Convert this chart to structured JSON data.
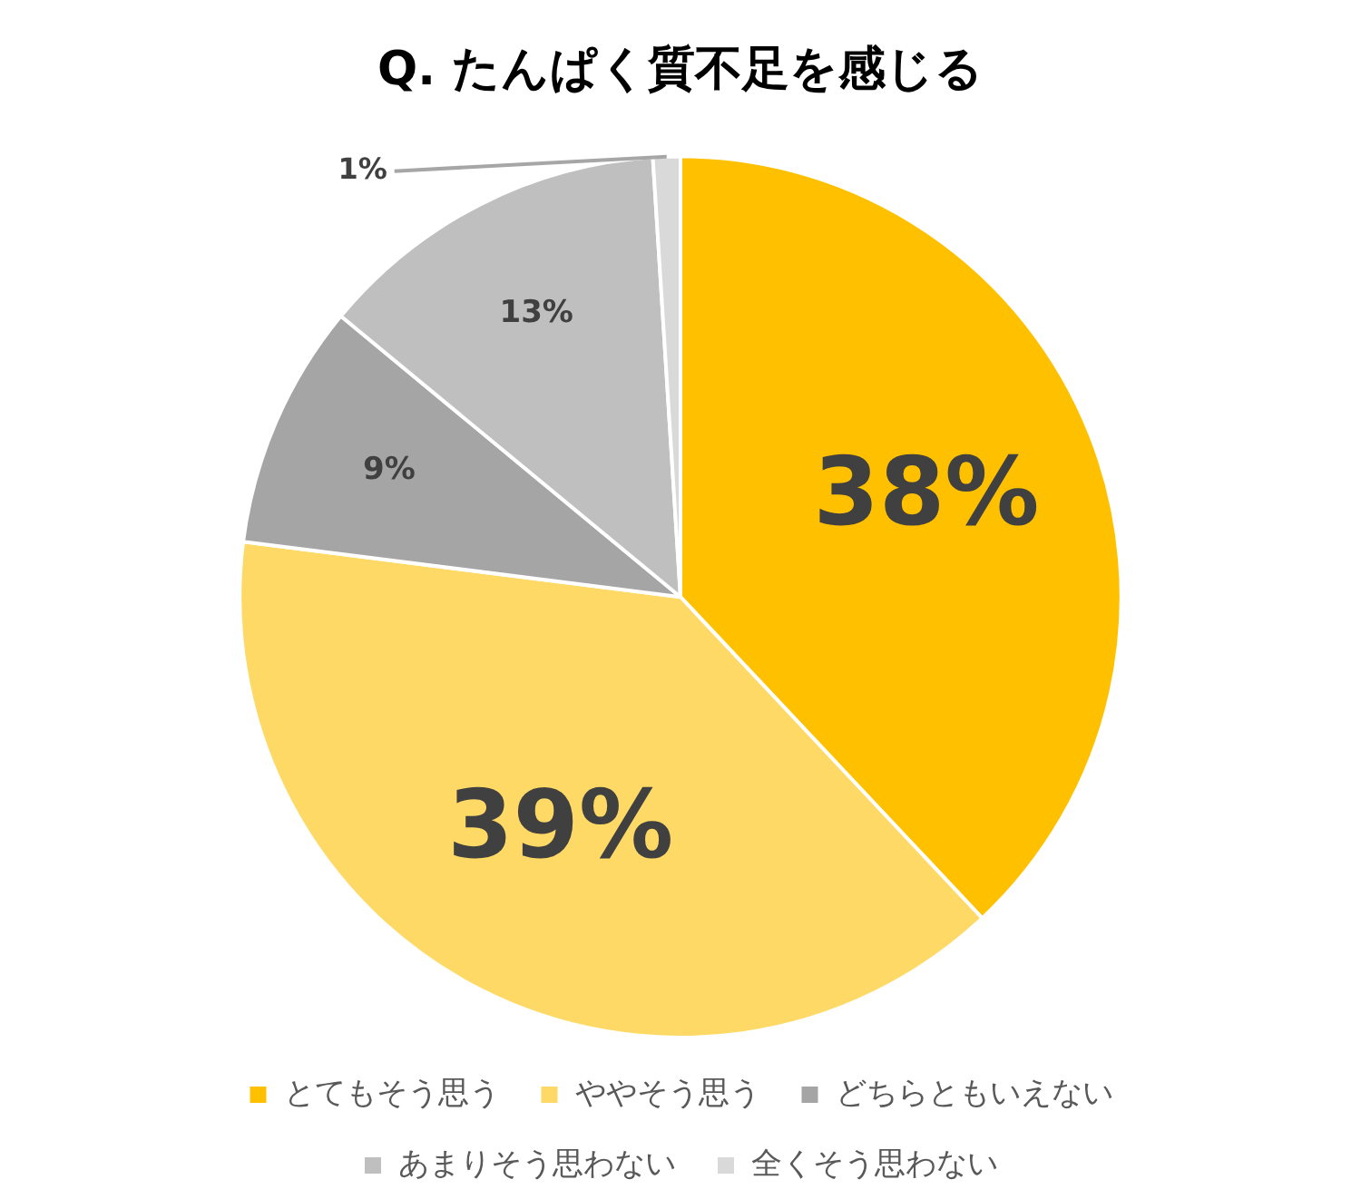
{
  "chart_data": {
    "type": "pie",
    "title": "Q. たんぱく質不足を感じる",
    "categories": [
      "とてもそう思う",
      "ややそう思う",
      "どちらともいえない",
      "あまりそう思わない",
      "全くそう思わない"
    ],
    "values": [
      38,
      39,
      9,
      13,
      1
    ],
    "colors": [
      "#ffc000",
      "#ffd966",
      "#a5a5a5",
      "#bfbfbf",
      "#d9d9d9"
    ],
    "value_labels": [
      "38%",
      "39%",
      "9%",
      "13%",
      "1%"
    ],
    "legend": "bottom"
  }
}
